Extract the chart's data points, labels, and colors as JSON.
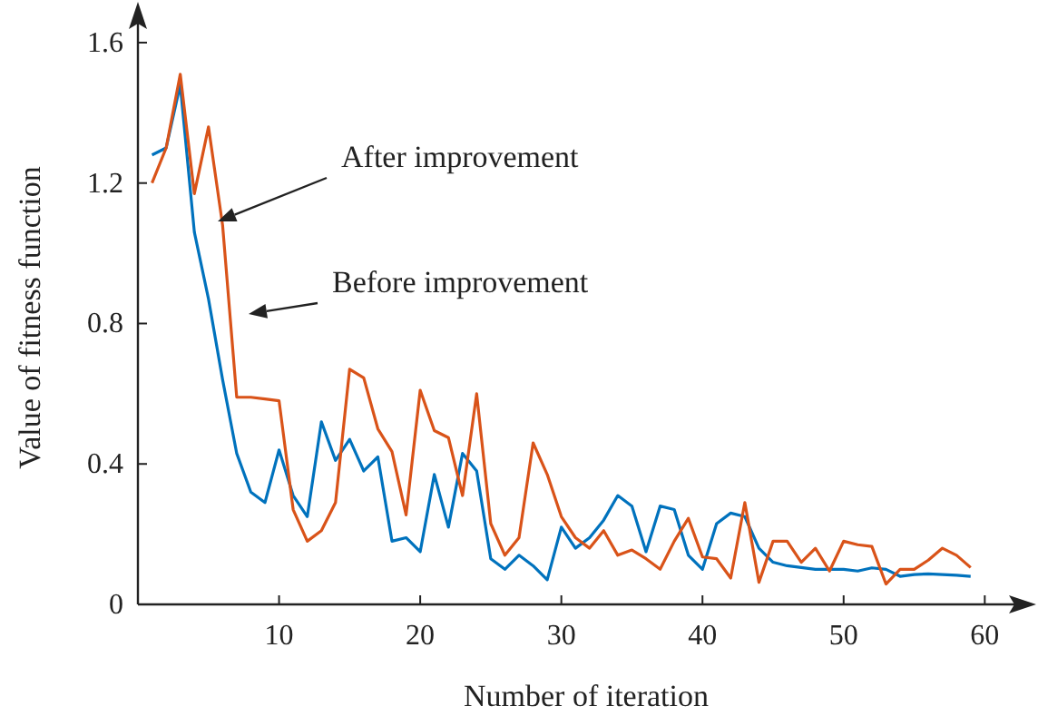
{
  "chart_data": {
    "type": "line",
    "xlabel": "Number of iteration",
    "ylabel": "Value of fitness function",
    "x": [
      1,
      2,
      3,
      4,
      5,
      6,
      7,
      8,
      9,
      10,
      11,
      12,
      13,
      14,
      15,
      16,
      17,
      18,
      19,
      20,
      21,
      22,
      23,
      24,
      25,
      26,
      27,
      28,
      29,
      30,
      31,
      32,
      33,
      34,
      35,
      36,
      37,
      38,
      39,
      40,
      41,
      42,
      43,
      44,
      45,
      46,
      47,
      48,
      49,
      50,
      51,
      52,
      53,
      54,
      55,
      56,
      57,
      58,
      59
    ],
    "series": [
      {
        "color": "#0072bd",
        "values": [
          1.28,
          1.3,
          1.48,
          1.06,
          0.87,
          0.64,
          0.43,
          0.32,
          0.29,
          0.44,
          0.31,
          0.25,
          0.52,
          0.41,
          0.47,
          0.38,
          0.42,
          0.18,
          0.19,
          0.15,
          0.37,
          0.22,
          0.43,
          0.38,
          0.13,
          0.1,
          0.14,
          0.11,
          0.07,
          0.22,
          0.16,
          0.19,
          0.24,
          0.31,
          0.28,
          0.15,
          0.28,
          0.27,
          0.14,
          0.1,
          0.23,
          0.26,
          0.25,
          0.16,
          0.12,
          0.11,
          0.105,
          0.1,
          0.1,
          0.1,
          0.095,
          0.104,
          0.1,
          0.08,
          0.085,
          0.087,
          0.085,
          0.083,
          0.08
        ]
      },
      {
        "color": "#d95319",
        "values": [
          1.2,
          1.3,
          1.51,
          1.17,
          1.36,
          1.08,
          0.59,
          0.59,
          0.585,
          0.58,
          0.27,
          0.18,
          0.21,
          0.29,
          0.67,
          0.645,
          0.5,
          0.435,
          0.255,
          0.61,
          0.495,
          0.475,
          0.31,
          0.6,
          0.23,
          0.14,
          0.19,
          0.46,
          0.37,
          0.25,
          0.19,
          0.16,
          0.21,
          0.14,
          0.155,
          0.13,
          0.1,
          0.18,
          0.245,
          0.135,
          0.13,
          0.075,
          0.29,
          0.063,
          0.18,
          0.18,
          0.12,
          0.16,
          0.095,
          0.18,
          0.17,
          0.165,
          0.058,
          0.1,
          0.1,
          0.126,
          0.16,
          0.14,
          0.105
        ]
      }
    ],
    "xlim": [
      0,
      63
    ],
    "ylim": [
      0,
      1.68
    ],
    "xticks": [
      10,
      20,
      30,
      40,
      50,
      60
    ],
    "yticks": [
      0,
      0.4,
      0.8,
      1.2,
      1.6
    ],
    "grid": false,
    "marker": "none",
    "line_style": "solid",
    "annotations": [
      "After improvement",
      "Before improvement"
    ]
  }
}
